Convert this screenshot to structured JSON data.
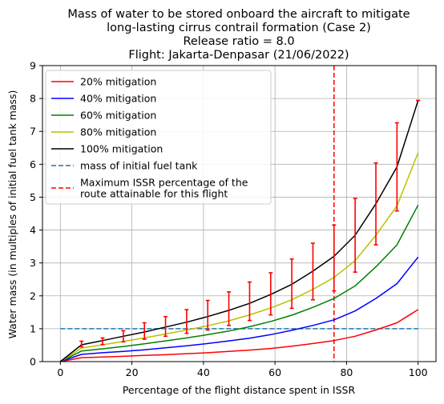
{
  "chart_data": {
    "type": "line",
    "title_lines": [
      "Mass of water to be stored onboard the aircraft to mitigate",
      "long-lasting cirrus contrail formation (Case 2)",
      "Release ratio = 8.0",
      "Flight: Jakarta-Denpasar (21/06/2022)"
    ],
    "xlabel": "Percentage of the flight distance spent in ISSR",
    "ylabel": "Water mass (in multiples of initial fuel tank mass)",
    "xlim": [
      -5,
      105
    ],
    "ylim": [
      0,
      9
    ],
    "xticks": [
      0,
      20,
      40,
      60,
      80,
      100
    ],
    "yticks": [
      0,
      1,
      2,
      3,
      4,
      5,
      6,
      7,
      8,
      9
    ],
    "grid": true,
    "legend_position": "top-left",
    "x": [
      0,
      5.9,
      11.8,
      17.6,
      23.5,
      29.4,
      35.3,
      41.2,
      47.1,
      52.9,
      58.8,
      64.7,
      70.6,
      76.5,
      82.4,
      88.2,
      94.1,
      100
    ],
    "series": [
      {
        "name": "20% mitigation",
        "color": "#ff0000",
        "values": [
          0,
          0.12,
          0.14,
          0.16,
          0.19,
          0.21,
          0.24,
          0.27,
          0.31,
          0.35,
          0.4,
          0.47,
          0.55,
          0.64,
          0.77,
          0.96,
          1.18,
          1.58
        ]
      },
      {
        "name": "40% mitigation",
        "color": "#0000ff",
        "values": [
          0,
          0.22,
          0.27,
          0.31,
          0.36,
          0.42,
          0.48,
          0.55,
          0.63,
          0.71,
          0.82,
          0.95,
          1.1,
          1.27,
          1.54,
          1.92,
          2.37,
          3.18
        ]
      },
      {
        "name": "60% mitigation",
        "color": "#008000",
        "values": [
          0,
          0.32,
          0.39,
          0.46,
          0.54,
          0.63,
          0.72,
          0.82,
          0.93,
          1.06,
          1.22,
          1.41,
          1.65,
          1.92,
          2.3,
          2.88,
          3.55,
          4.76
        ]
      },
      {
        "name": "80% mitigation",
        "color": "#bfbf00",
        "values": [
          0,
          0.41,
          0.51,
          0.61,
          0.72,
          0.84,
          0.96,
          1.09,
          1.24,
          1.42,
          1.63,
          1.88,
          2.2,
          2.56,
          3.07,
          3.84,
          4.73,
          6.35
        ]
      },
      {
        "name": "100% mitigation",
        "color": "#000000",
        "values": [
          0,
          0.51,
          0.64,
          0.77,
          0.9,
          1.05,
          1.2,
          1.37,
          1.56,
          1.77,
          2.04,
          2.35,
          2.75,
          3.2,
          3.84,
          4.8,
          5.92,
          7.94
        ]
      }
    ],
    "error_bars": {
      "color": "#ff0000",
      "x": [
        5.9,
        11.8,
        17.6,
        23.5,
        29.4,
        35.3,
        41.2,
        47.1,
        52.9,
        58.8,
        64.7,
        70.6,
        76.5,
        82.4,
        88.2,
        94.1,
        100
      ],
      "low": [
        0.45,
        0.52,
        0.6,
        0.68,
        0.77,
        0.86,
        0.96,
        1.1,
        1.25,
        1.42,
        1.62,
        1.88,
        2.15,
        2.72,
        3.55,
        4.58,
        7.94
      ],
      "high": [
        0.62,
        0.72,
        0.94,
        1.18,
        1.37,
        1.58,
        1.86,
        2.12,
        2.42,
        2.7,
        3.12,
        3.6,
        4.15,
        4.96,
        6.04,
        7.26,
        7.94
      ]
    },
    "reference_lines": [
      {
        "name": "mass of initial fuel tank",
        "orientation": "horizontal",
        "value": 1,
        "color": "#1f77b4",
        "style": "dashed"
      },
      {
        "name": "Maximum ISSR percentage of the route attainable for this flight",
        "legend_lines": [
          "Maximum ISSR percentage of the",
          " route attainable for this flight"
        ],
        "orientation": "vertical",
        "value": 76.5,
        "color": "#ff0000",
        "style": "dashed"
      }
    ]
  }
}
